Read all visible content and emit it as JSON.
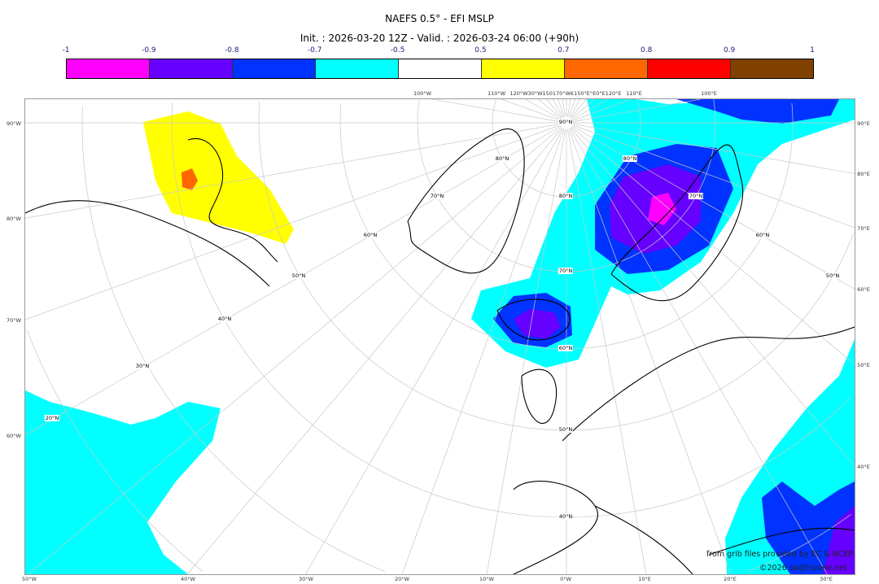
{
  "title": "NAEFS 0.5° - EFI MSLP",
  "subtitle": "Init. : 2026-03-20 12Z - Valid. : 2026-03-24 06:00 (+90h)",
  "colorbar": {
    "ticks": [
      "-1",
      "-0.9",
      "-0.8",
      "-0.7",
      "-0.5",
      "0.5",
      "0.7",
      "0.8",
      "0.9",
      "1"
    ],
    "colors": [
      "#ff00ff",
      "#6600ff",
      "#0033ff",
      "#00ffff",
      "#ffffff",
      "#ffff00",
      "#ff6600",
      "#ff0000",
      "#804000"
    ]
  },
  "axes": {
    "bottom": [
      "50°W",
      "40°W",
      "30°W",
      "20°W",
      "10°W",
      "0°W",
      "10°E",
      "20°E",
      "30°E"
    ],
    "left": [
      "90°W",
      "80°W",
      "70°W",
      "60°W"
    ],
    "right": [
      "90°E",
      "80°E",
      "70°E",
      "60°E",
      "50°E",
      "40°E"
    ],
    "top": [
      "100°W",
      "110°W",
      "120°W30°W150170°W€150°E°E0°E120°E",
      "110°E",
      "100°E"
    ]
  },
  "lat_labels": [
    "90°N",
    "80°N",
    "70°N",
    "60°N",
    "50°N",
    "40°N",
    "30°N",
    "20°N",
    "80°N",
    "70°N",
    "60°N",
    "50°N",
    "40°N",
    "80°N",
    "70°N",
    "60°N",
    "50°N"
  ],
  "credits": {
    "source": "from grib files provided by EC & NCEP",
    "copyright": "©2026 sb@irizone.net"
  }
}
